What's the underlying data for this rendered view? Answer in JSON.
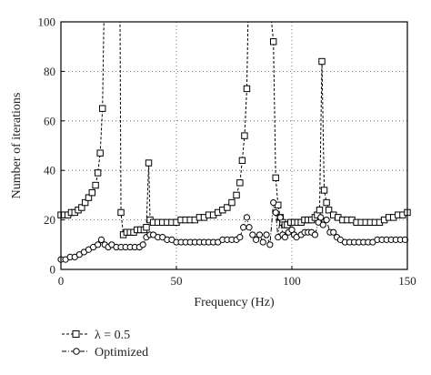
{
  "chart_data": {
    "type": "line",
    "xlabel": "Frequency (Hz)",
    "ylabel": "Number of iterations",
    "xlim": [
      0,
      150
    ],
    "ylim": [
      0,
      100
    ],
    "xticks": [
      0,
      50,
      100,
      150
    ],
    "yticks": [
      0,
      20,
      40,
      60,
      80,
      100
    ],
    "grid": true,
    "legend_position": "bottom-left, below plot",
    "series": [
      {
        "name": "λ = 0.5",
        "line_style": "dashed",
        "marker": "square",
        "color": "#000000",
        "points": [
          [
            0,
            22
          ],
          [
            1.5,
            22
          ],
          [
            3,
            22
          ],
          [
            4.5,
            23
          ],
          [
            6,
            23
          ],
          [
            7.5,
            24
          ],
          [
            9,
            25
          ],
          [
            10.5,
            27
          ],
          [
            12,
            29
          ],
          [
            13.5,
            31
          ],
          [
            15,
            34
          ],
          [
            16,
            39
          ],
          [
            17,
            47
          ],
          [
            18,
            65
          ],
          [
            18.6,
            100
          ],
          [
            25.6,
            100
          ],
          [
            26,
            23
          ],
          [
            27,
            14
          ],
          [
            28.5,
            15
          ],
          [
            30,
            15
          ],
          [
            31.5,
            15
          ],
          [
            33,
            16
          ],
          [
            34.5,
            16
          ],
          [
            36,
            16
          ],
          [
            37,
            17
          ],
          [
            38,
            43
          ],
          [
            38.6,
            20
          ],
          [
            40,
            19
          ],
          [
            42,
            19
          ],
          [
            44,
            19
          ],
          [
            46,
            19
          ],
          [
            48,
            19
          ],
          [
            50,
            19
          ],
          [
            52,
            20
          ],
          [
            54,
            20
          ],
          [
            56,
            20
          ],
          [
            58,
            20
          ],
          [
            60,
            21
          ],
          [
            62,
            21
          ],
          [
            64,
            22
          ],
          [
            66,
            22
          ],
          [
            68,
            23
          ],
          [
            70,
            24
          ],
          [
            72,
            25
          ],
          [
            74,
            27
          ],
          [
            76,
            30
          ],
          [
            77.5,
            35
          ],
          [
            78.5,
            44
          ],
          [
            79.5,
            54
          ],
          [
            80.5,
            73
          ],
          [
            81,
            100
          ],
          [
            91.2,
            100
          ],
          [
            92,
            92
          ],
          [
            93,
            37
          ],
          [
            94,
            26
          ],
          [
            95,
            21
          ],
          [
            96,
            19
          ],
          [
            97,
            18
          ],
          [
            98,
            18
          ],
          [
            99.5,
            19
          ],
          [
            101,
            19
          ],
          [
            102.5,
            19
          ],
          [
            104,
            19
          ],
          [
            105.5,
            20
          ],
          [
            107,
            20
          ],
          [
            108.5,
            20
          ],
          [
            110,
            21
          ],
          [
            111,
            22
          ],
          [
            112,
            24
          ],
          [
            113,
            84
          ],
          [
            114,
            32
          ],
          [
            115,
            27
          ],
          [
            116,
            24
          ],
          [
            118,
            22
          ],
          [
            120,
            21
          ],
          [
            122,
            20
          ],
          [
            124,
            20
          ],
          [
            126,
            20
          ],
          [
            128,
            19
          ],
          [
            130,
            19
          ],
          [
            132,
            19
          ],
          [
            134,
            19
          ],
          [
            136,
            19
          ],
          [
            138,
            19
          ],
          [
            140,
            20
          ],
          [
            142,
            21
          ],
          [
            144,
            21
          ],
          [
            146,
            22
          ],
          [
            148,
            22
          ],
          [
            150,
            23
          ]
        ]
      },
      {
        "name": "Optimized",
        "line_style": "dash-dot",
        "marker": "circle",
        "color": "#000000",
        "points": [
          [
            0,
            4
          ],
          [
            2,
            4
          ],
          [
            4,
            5
          ],
          [
            6,
            5
          ],
          [
            8,
            6
          ],
          [
            10,
            7
          ],
          [
            12,
            8
          ],
          [
            14,
            9
          ],
          [
            16,
            10
          ],
          [
            17.5,
            12
          ],
          [
            19,
            10
          ],
          [
            20.5,
            9
          ],
          [
            22,
            10
          ],
          [
            24,
            9
          ],
          [
            26,
            9
          ],
          [
            28,
            9
          ],
          [
            30,
            9
          ],
          [
            32,
            9
          ],
          [
            34,
            9
          ],
          [
            35.5,
            10
          ],
          [
            37,
            13
          ],
          [
            38.5,
            14
          ],
          [
            40,
            14
          ],
          [
            42,
            13
          ],
          [
            44,
            13
          ],
          [
            46,
            12
          ],
          [
            48,
            12
          ],
          [
            50,
            11
          ],
          [
            52,
            11
          ],
          [
            54,
            11
          ],
          [
            56,
            11
          ],
          [
            58,
            11
          ],
          [
            60,
            11
          ],
          [
            62,
            11
          ],
          [
            64,
            11
          ],
          [
            66,
            11
          ],
          [
            68,
            11
          ],
          [
            70,
            12
          ],
          [
            72,
            12
          ],
          [
            74,
            12
          ],
          [
            76,
            12
          ],
          [
            77.5,
            13
          ],
          [
            79,
            17
          ],
          [
            80.5,
            21
          ],
          [
            81.5,
            17
          ],
          [
            83,
            14
          ],
          [
            84.5,
            12
          ],
          [
            86,
            14
          ],
          [
            87.5,
            11
          ],
          [
            89,
            14
          ],
          [
            90.5,
            10
          ],
          [
            92,
            27
          ],
          [
            93,
            23
          ],
          [
            94,
            13
          ],
          [
            95,
            21
          ],
          [
            96,
            14
          ],
          [
            97,
            13
          ],
          [
            98.5,
            15
          ],
          [
            100,
            16
          ],
          [
            101,
            14
          ],
          [
            102,
            13
          ],
          [
            104,
            14
          ],
          [
            105.5,
            15
          ],
          [
            107,
            15
          ],
          [
            108.5,
            15
          ],
          [
            110,
            14
          ],
          [
            111.5,
            19
          ],
          [
            112.5,
            21
          ],
          [
            113.5,
            18
          ],
          [
            115,
            20
          ],
          [
            116.5,
            15
          ],
          [
            118,
            15
          ],
          [
            119.5,
            13
          ],
          [
            121,
            12
          ],
          [
            123,
            11
          ],
          [
            125,
            11
          ],
          [
            127,
            11
          ],
          [
            129,
            11
          ],
          [
            131,
            11
          ],
          [
            133,
            11
          ],
          [
            135,
            11
          ],
          [
            137,
            12
          ],
          [
            139,
            12
          ],
          [
            141,
            12
          ],
          [
            143,
            12
          ],
          [
            145,
            12
          ],
          [
            147,
            12
          ],
          [
            149,
            12
          ]
        ]
      }
    ]
  },
  "legend": {
    "items": [
      {
        "label": "λ = 0.5",
        "marker": "square",
        "line_style": "dashed"
      },
      {
        "label": "Optimized",
        "marker": "circle",
        "line_style": "dash-dot"
      }
    ]
  }
}
